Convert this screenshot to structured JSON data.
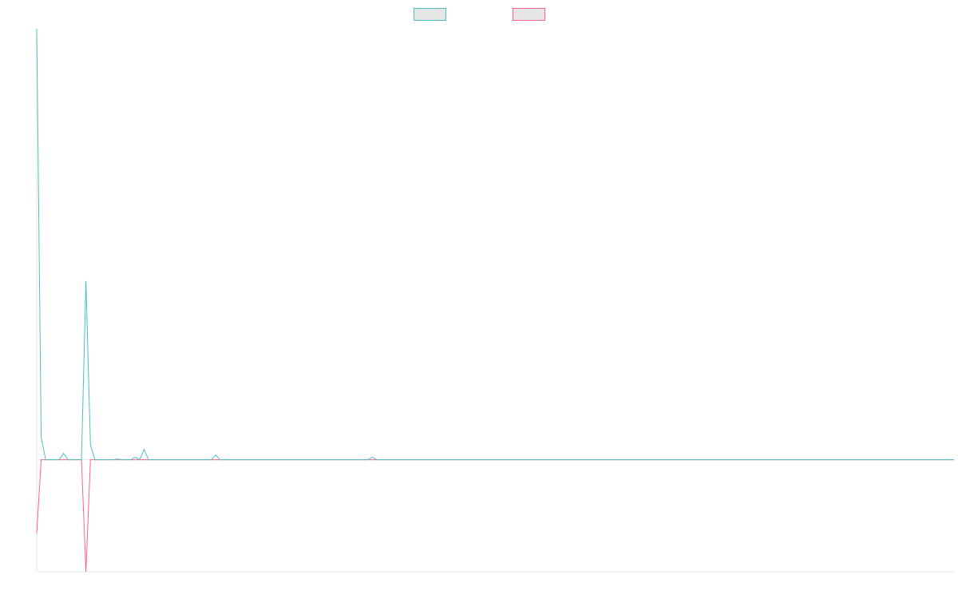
{
  "chart_data": {
    "type": "line",
    "x": [
      0,
      1,
      2,
      5,
      6,
      7,
      10,
      11,
      12,
      13,
      17,
      18,
      19,
      21,
      22,
      23,
      24,
      25,
      39,
      40,
      41,
      74,
      75,
      76,
      205
    ],
    "series": [
      {
        "color": "#4bc0c0",
        "values": [
          100,
          5.2,
          0,
          0,
          1.5,
          0,
          0,
          41.5,
          3.5,
          0,
          0,
          0.2,
          0,
          0,
          0.6,
          0,
          2.4,
          0,
          0,
          1.1,
          0,
          0,
          0.6,
          0,
          0
        ]
      },
      {
        "color": "#ff6384",
        "values": [
          -17,
          0,
          0,
          0,
          0,
          0,
          0,
          -26,
          0,
          0,
          0,
          0,
          0,
          0,
          0,
          0,
          0,
          0,
          0,
          0,
          0,
          0,
          0,
          0,
          0
        ]
      }
    ],
    "xlim": [
      0,
      205
    ],
    "ylim": [
      -26,
      100
    ],
    "legend": "top"
  }
}
